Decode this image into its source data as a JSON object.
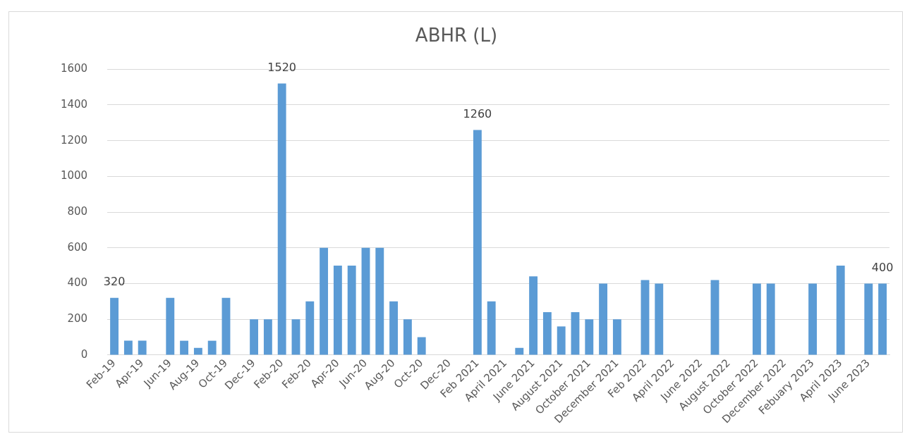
{
  "chart_data": {
    "type": "bar",
    "title": "ABHR (L)",
    "categories": [
      "Feb-19",
      null,
      "Apr-19",
      null,
      "Jun-19",
      null,
      "Aug-19",
      null,
      "Oct-19",
      null,
      "Dec-19",
      null,
      "Feb-20",
      null,
      "Feb-20",
      null,
      "Apr-20",
      null,
      "Jun-20",
      null,
      "Aug-20",
      null,
      "Oct-20",
      null,
      "Dec-20",
      null,
      "Feb 2021",
      null,
      "April 2021",
      null,
      "June 2021",
      null,
      "August 2021",
      null,
      "October 2021",
      null,
      "December 2021",
      null,
      "Feb 2022",
      null,
      "April 2022",
      null,
      "June 2022",
      null,
      "August 2022",
      null,
      "October 2022",
      null,
      "December 2022",
      null,
      "Febuary 2023",
      null,
      "April 2023",
      null,
      "June 2023",
      null
    ],
    "values": [
      320,
      80,
      80,
      null,
      320,
      80,
      40,
      80,
      320,
      null,
      200,
      200,
      1520,
      200,
      300,
      600,
      500,
      500,
      600,
      600,
      300,
      200,
      100,
      null,
      null,
      null,
      1260,
      300,
      null,
      40,
      440,
      240,
      160,
      240,
      200,
      400,
      200,
      null,
      420,
      400,
      null,
      null,
      null,
      420,
      null,
      null,
      400,
      400,
      null,
      null,
      400,
      null,
      500,
      null,
      400,
      400
    ],
    "value_labels": [
      "320",
      null,
      null,
      null,
      null,
      null,
      null,
      null,
      null,
      null,
      null,
      null,
      "1520",
      null,
      null,
      null,
      null,
      null,
      null,
      null,
      null,
      null,
      null,
      null,
      null,
      null,
      "1260",
      null,
      null,
      null,
      null,
      null,
      null,
      null,
      null,
      null,
      null,
      null,
      null,
      null,
      null,
      null,
      null,
      null,
      null,
      null,
      null,
      null,
      null,
      null,
      null,
      null,
      null,
      null,
      null,
      "400"
    ],
    "color": "#5b9bd5",
    "ylim": [
      0,
      1600
    ],
    "yticks": [
      0,
      200,
      400,
      600,
      800,
      1000,
      1200,
      1400,
      1600
    ],
    "grid": "y",
    "legend": false
  }
}
